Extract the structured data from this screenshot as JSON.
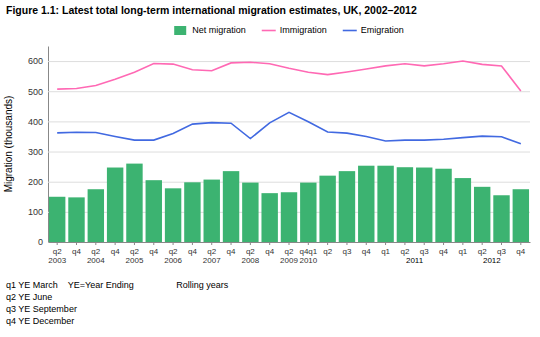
{
  "chart_data": {
    "type": "bar",
    "title": "Figure 1.1: Latest total long-term international migration estimates, UK, 2002–2012",
    "ylabel": "Migration (thousands)",
    "categories": [
      "q2\n2003",
      "q4",
      "q2\n2004",
      "q4",
      "q2\n2005",
      "q4",
      "q2\n2006",
      "q4",
      "q2\n2007",
      "q4",
      "q2\n2008",
      "q4",
      "q2\n2009",
      "q4q1\n2010",
      "q2",
      "q3",
      "q4",
      "q1",
      "q2",
      "q3",
      "q4",
      "q1",
      "q2",
      "q3",
      "q4"
    ],
    "series": [
      {
        "name": "Net migration",
        "type": "bar",
        "color": "#3CB371",
        "values": [
          150,
          148,
          175,
          247,
          260,
          205,
          178,
          198,
          207,
          235,
          197,
          162,
          165,
          197,
          220,
          235,
          253,
          253,
          248,
          247,
          243,
          212,
          183,
          155,
          175
        ]
      },
      {
        "name": "Immigration",
        "type": "line",
        "color": "#FF69B4",
        "values": [
          507,
          509,
          519,
          540,
          563,
          592,
          590,
          571,
          568,
          594,
          596,
          591,
          576,
          563,
          555,
          564,
          574,
          584,
          591,
          584,
          591,
          600,
          589,
          584,
          501
        ]
      },
      {
        "name": "Emigration",
        "type": "line",
        "color": "#4169E1",
        "values": [
          362,
          364,
          363,
          350,
          338,
          338,
          360,
          391,
          396,
          394,
          343,
          395,
          430,
          399,
          365,
          361,
          350,
          335,
          338,
          338,
          341,
          346,
          351,
          349,
          326
        ]
      }
    ],
    "ylim": [
      0,
      650
    ],
    "yticks": [
      0,
      100,
      200,
      300,
      400,
      500,
      600
    ],
    "grid": true,
    "legend": "top",
    "annotations": [
      "2011",
      "2012",
      "q1 YE March    YE=Year Ending                 Rolling years",
      "q2 YE June",
      "q3 YE September",
      "q4 YE December"
    ]
  }
}
